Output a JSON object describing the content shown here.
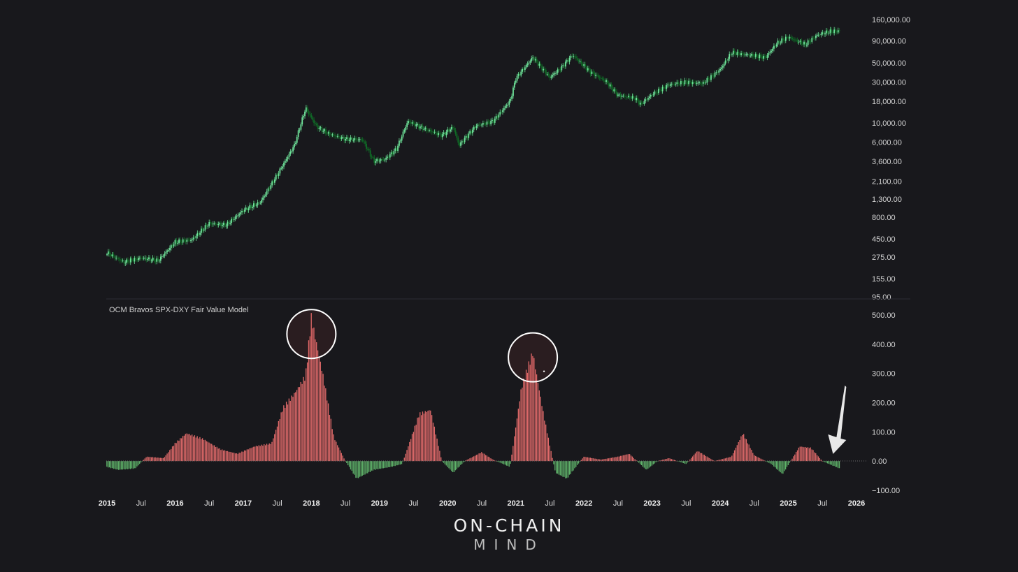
{
  "colors": {
    "background": "#18181c",
    "price_up": "#6fe39a",
    "price_down": "#0f6b26",
    "histogram_positive": "#e06a6a",
    "histogram_negative": "#5fb36a",
    "annotation": "#ffffff",
    "arrow": "#e8e8e8"
  },
  "branding": {
    "line1": "ON-CHAIN",
    "line2": "MIND"
  },
  "chart_data": [
    {
      "type": "line",
      "subtype": "candlestick",
      "title": "",
      "scale": "log",
      "ylim": [
        95,
        160000
      ],
      "y_tick_labels": [
        "160,000.00",
        "90,000.00",
        "50,000.00",
        "30,000.00",
        "18,000.00",
        "10,000.00",
        "6,000.00",
        "3,600.00",
        "2,100.00",
        "1,300.00",
        "800.00",
        "450.00",
        "275.00",
        "155.00",
        "95.00"
      ],
      "y_ticks": [
        160000,
        90000,
        50000,
        30000,
        18000,
        10000,
        6000,
        3600,
        2100,
        1300,
        800,
        450,
        275,
        155,
        95
      ],
      "xlim": [
        "2015-01",
        "2026-01"
      ],
      "series": [
        {
          "x": [
            "2015-01",
            "2015-04",
            "2015-07",
            "2015-10",
            "2016-01",
            "2016-04",
            "2016-07",
            "2016-10",
            "2017-01",
            "2017-04",
            "2017-07",
            "2017-10",
            "2017-12",
            "2018-01",
            "2018-02",
            "2018-04",
            "2018-07",
            "2018-10",
            "2018-12",
            "2019-02",
            "2019-04",
            "2019-06",
            "2019-09",
            "2019-12",
            "2020-02",
            "2020-03",
            "2020-06",
            "2020-09",
            "2020-12",
            "2021-01",
            "2021-04",
            "2021-07",
            "2021-09",
            "2021-11",
            "2022-02",
            "2022-05",
            "2022-07",
            "2022-10",
            "2022-11",
            "2023-01",
            "2023-04",
            "2023-07",
            "2023-10",
            "2024-01",
            "2024-03",
            "2024-06",
            "2024-09",
            "2024-11",
            "2025-01",
            "2025-04",
            "2025-06",
            "2025-08",
            "2025-10"
          ],
          "values": [
            310,
            240,
            270,
            250,
            410,
            440,
            680,
            650,
            960,
            1200,
            2500,
            5500,
            15000,
            11500,
            9000,
            7500,
            6500,
            6400,
            3600,
            3800,
            5000,
            10500,
            8500,
            7200,
            9000,
            5500,
            9300,
            10500,
            18000,
            33000,
            58000,
            34000,
            44000,
            62000,
            40000,
            30000,
            21000,
            19500,
            16500,
            21500,
            28000,
            30000,
            29000,
            42000,
            66000,
            62000,
            58000,
            85000,
            100000,
            82000,
            105000,
            115000,
            118000
          ]
        }
      ]
    },
    {
      "type": "bar",
      "title": "OCM Bravos SPX-DXY Fair Value Model",
      "ylim": [
        -100,
        500
      ],
      "y_tick_labels": [
        "500.00",
        "400.00",
        "300.00",
        "200.00",
        "100.00",
        "0.00",
        "−100.00"
      ],
      "y_ticks": [
        500,
        400,
        300,
        200,
        100,
        0,
        -100
      ],
      "x_tick_labels": [
        "2015",
        "Jul",
        "2016",
        "Jul",
        "2017",
        "Jul",
        "2018",
        "Jul",
        "2019",
        "Jul",
        "2020",
        "Jul",
        "2021",
        "Jul",
        "2022",
        "Jul",
        "2023",
        "Jul",
        "2024",
        "Jul",
        "2025",
        "Jul",
        "2026"
      ],
      "xlim": [
        "2015-01",
        "2026-01"
      ],
      "series": [
        {
          "x": [
            "2015-01",
            "2015-03",
            "2015-06",
            "2015-08",
            "2015-11",
            "2016-01",
            "2016-03",
            "2016-06",
            "2016-09",
            "2016-12",
            "2017-03",
            "2017-06",
            "2017-08",
            "2017-10",
            "2017-12",
            "2018-01",
            "2018-03",
            "2018-05",
            "2018-07",
            "2018-09",
            "2018-12",
            "2019-03",
            "2019-05",
            "2019-08",
            "2019-10",
            "2019-12",
            "2020-02",
            "2020-04",
            "2020-07",
            "2020-09",
            "2020-12",
            "2021-02",
            "2021-04",
            "2021-06",
            "2021-08",
            "2021-10",
            "2022-01",
            "2022-04",
            "2022-07",
            "2022-09",
            "2022-12",
            "2023-02",
            "2023-04",
            "2023-07",
            "2023-09",
            "2023-12",
            "2024-03",
            "2024-05",
            "2024-07",
            "2024-10",
            "2024-12",
            "2025-03",
            "2025-05",
            "2025-07",
            "2025-10"
          ],
          "values": [
            -20,
            -30,
            -25,
            15,
            10,
            60,
            95,
            75,
            40,
            25,
            50,
            60,
            180,
            230,
            290,
            490,
            300,
            80,
            0,
            -60,
            -30,
            -20,
            -10,
            160,
            175,
            0,
            -40,
            0,
            30,
            5,
            -20,
            250,
            370,
            150,
            -40,
            -60,
            15,
            5,
            15,
            25,
            -30,
            0,
            10,
            -10,
            35,
            0,
            15,
            95,
            20,
            -10,
            -45,
            50,
            45,
            0,
            -25
          ]
        }
      ],
      "annotations": [
        "circle around 2018 peak",
        "circle around 2021 peak",
        "arrow pointing to latest values"
      ]
    }
  ]
}
